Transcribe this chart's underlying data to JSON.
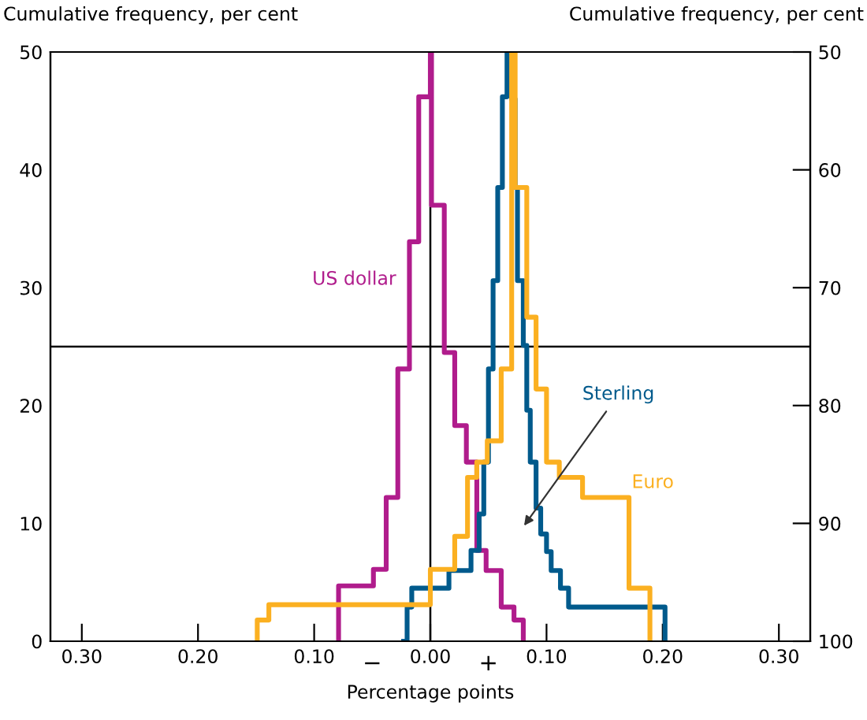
{
  "chart_data": {
    "type": "step",
    "ylabel": "Cumulative frequency, per cent",
    "y2label": "Cumulative frequency, per cent",
    "xlabel": "Percentage points",
    "annotations": [
      "−",
      "+"
    ],
    "xlim": [
      -0.327,
      0.327
    ],
    "ylim": [
      0,
      50
    ],
    "y2lim": [
      100,
      50
    ],
    "xticks": [
      {
        "value": -0.3,
        "label": "0.30"
      },
      {
        "value": -0.2,
        "label": "0.20"
      },
      {
        "value": -0.1,
        "label": "0.10"
      },
      {
        "value": 0,
        "label": "0.00"
      },
      {
        "value": 0.1,
        "label": "0.10"
      },
      {
        "value": 0.2,
        "label": "0.20"
      },
      {
        "value": 0.3,
        "label": "0.30"
      }
    ],
    "yticks": [
      0,
      10,
      20,
      30,
      40,
      50
    ],
    "y2ticks": [
      50,
      60,
      70,
      80,
      90,
      100
    ],
    "ref_lines": [
      {
        "axis": "x",
        "value": 0,
        "color": "#000000"
      },
      {
        "axis": "y",
        "value": 25,
        "color": "#000000"
      }
    ],
    "grid": false,
    "legend": false,
    "series": [
      {
        "name": "US dollar",
        "color": "#b01c8c",
        "x": [
          -0.079,
          -0.079,
          -0.049,
          -0.038,
          -0.028,
          -0.018,
          -0.01,
          0.0,
          0.001,
          0.012,
          0.021,
          0.031,
          0.04,
          0.048,
          0.061,
          0.072,
          0.08
        ],
        "values": [
          0,
          4.7,
          6.1,
          12.2,
          23.1,
          33.9,
          46.2,
          50,
          37.0,
          24.5,
          18.3,
          15.2,
          7.7,
          6.0,
          2.9,
          1.8,
          0
        ]
      },
      {
        "name": "Sterling",
        "color": "#005a8c",
        "x": [
          -0.023,
          -0.02,
          -0.016,
          0.016,
          0.035,
          0.042,
          0.046,
          0.05,
          0.054,
          0.058,
          0.062,
          0.066,
          0.07,
          0.073,
          0.075,
          0.08,
          0.083,
          0.086,
          0.091,
          0.095,
          0.1,
          0.104,
          0.112,
          0.119,
          0.202
        ],
        "values": [
          0,
          2.9,
          4.5,
          6.0,
          7.7,
          10.8,
          15.2,
          23.1,
          30.6,
          38.5,
          46.2,
          50,
          46.0,
          38.5,
          30.6,
          25.1,
          19.6,
          15.2,
          11.3,
          9.1,
          7.6,
          6.0,
          4.5,
          2.9,
          0
        ]
      },
      {
        "name": "Euro",
        "color": "#fbb021",
        "x": [
          -0.149,
          -0.149,
          -0.139,
          0.0,
          0.021,
          0.032,
          0.04,
          0.049,
          0.061,
          0.07,
          0.073,
          0.083,
          0.091,
          0.1,
          0.111,
          0.131,
          0.171,
          0.189
        ],
        "values": [
          0,
          1.8,
          3.1,
          6.1,
          8.9,
          13.9,
          15.2,
          17.0,
          23.1,
          50,
          38.5,
          27.5,
          21.4,
          15.2,
          13.9,
          12.2,
          4.5,
          0
        ]
      }
    ]
  }
}
